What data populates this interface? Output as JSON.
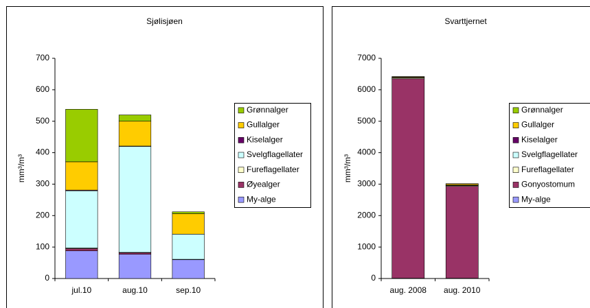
{
  "chart_data": [
    {
      "type": "bar",
      "stacked": true,
      "title": "Sjølisjøen",
      "y_label": "mm³/m³",
      "categories": [
        "jul.10",
        "aug.10",
        "sep.10"
      ],
      "ylim": [
        0,
        700
      ],
      "yticks": [
        0,
        100,
        200,
        300,
        400,
        500,
        600,
        700
      ],
      "grid": false,
      "series": [
        {
          "name": "My-alge",
          "color": "#9999ff",
          "values": [
            88,
            77,
            60
          ]
        },
        {
          "name": "Øyealger",
          "color": "#993366",
          "values": [
            7,
            5,
            0
          ]
        },
        {
          "name": "Fureflagellater",
          "color": "#ffffcc",
          "values": [
            2,
            1,
            1
          ]
        },
        {
          "name": "Svelgflagellater",
          "color": "#ccffff",
          "values": [
            182,
            337,
            80
          ]
        },
        {
          "name": "Kiselalger",
          "color": "#660066",
          "values": [
            2,
            1,
            0
          ]
        },
        {
          "name": "Gullalger",
          "color": "#ffcc00",
          "values": [
            90,
            79,
            65
          ]
        },
        {
          "name": "Grønnalger",
          "color": "#99cc00",
          "values": [
            167,
            20,
            6
          ]
        }
      ]
    },
    {
      "type": "bar",
      "stacked": true,
      "title": "Svarttjernet",
      "y_label": "mm³/m³",
      "categories": [
        "aug. 2008",
        "aug. 2010"
      ],
      "ylim": [
        0,
        7000
      ],
      "yticks": [
        0,
        1000,
        2000,
        3000,
        4000,
        5000,
        6000,
        7000
      ],
      "grid": false,
      "series": [
        {
          "name": "My-alge",
          "color": "#9999ff",
          "values": [
            10,
            10
          ]
        },
        {
          "name": "Gonyostomum",
          "color": "#993366",
          "values": [
            6340,
            2920
          ]
        },
        {
          "name": "Fureflagellater",
          "color": "#ffffcc",
          "values": [
            30,
            20
          ]
        },
        {
          "name": "Svelgflagellater",
          "color": "#ccffff",
          "values": [
            10,
            10
          ]
        },
        {
          "name": "Kiselalger",
          "color": "#660066",
          "values": [
            5,
            10
          ]
        },
        {
          "name": "Gullalger",
          "color": "#ffcc00",
          "values": [
            20,
            40
          ]
        },
        {
          "name": "Grønnalger",
          "color": "#99cc00",
          "values": [
            5,
            5
          ]
        }
      ]
    }
  ]
}
